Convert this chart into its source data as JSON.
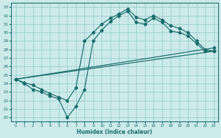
{
  "xlabel": "Humidex (Indice chaleur)",
  "bg_color": "#cceaea",
  "line_color": "#1a6b6b",
  "grid_color": "#99cccc",
  "xlim": [
    -0.5,
    23.5
  ],
  "ylim": [
    19.5,
    33.5
  ],
  "xticks": [
    0,
    1,
    2,
    3,
    4,
    5,
    6,
    7,
    8,
    9,
    10,
    11,
    12,
    13,
    14,
    15,
    16,
    17,
    18,
    19,
    20,
    21,
    22,
    23
  ],
  "yticks": [
    20,
    21,
    22,
    23,
    24,
    25,
    26,
    27,
    28,
    29,
    30,
    31,
    32,
    33
  ],
  "line1_x": [
    0,
    1,
    2,
    3,
    4,
    5,
    6,
    7,
    8,
    9,
    10,
    11,
    12,
    13,
    14,
    15,
    16,
    17,
    18,
    19,
    20,
    21,
    22,
    23
  ],
  "line1_y": [
    24.5,
    24.0,
    23.3,
    23.0,
    22.5,
    22.2,
    20.0,
    21.3,
    23.3,
    29.0,
    30.3,
    31.3,
    32.0,
    32.5,
    31.2,
    31.0,
    31.7,
    31.2,
    30.2,
    30.0,
    29.6,
    28.7,
    27.8,
    27.8
  ],
  "line2_x": [
    0,
    1,
    2,
    3,
    4,
    5,
    6,
    7,
    8,
    9,
    10,
    11,
    12,
    13,
    14,
    15,
    16,
    17,
    18,
    19,
    20,
    21,
    22,
    23
  ],
  "line2_y": [
    24.5,
    24.1,
    23.8,
    23.3,
    22.8,
    22.4,
    22.0,
    23.5,
    29.0,
    30.0,
    31.0,
    31.7,
    32.2,
    32.8,
    31.8,
    31.5,
    32.0,
    31.5,
    30.8,
    30.5,
    30.0,
    29.0,
    28.0,
    27.8
  ],
  "line3_x": [
    0,
    23
  ],
  "line3_y": [
    24.5,
    27.8
  ],
  "line4_x": [
    0,
    23
  ],
  "line4_y": [
    24.5,
    28.0
  ]
}
